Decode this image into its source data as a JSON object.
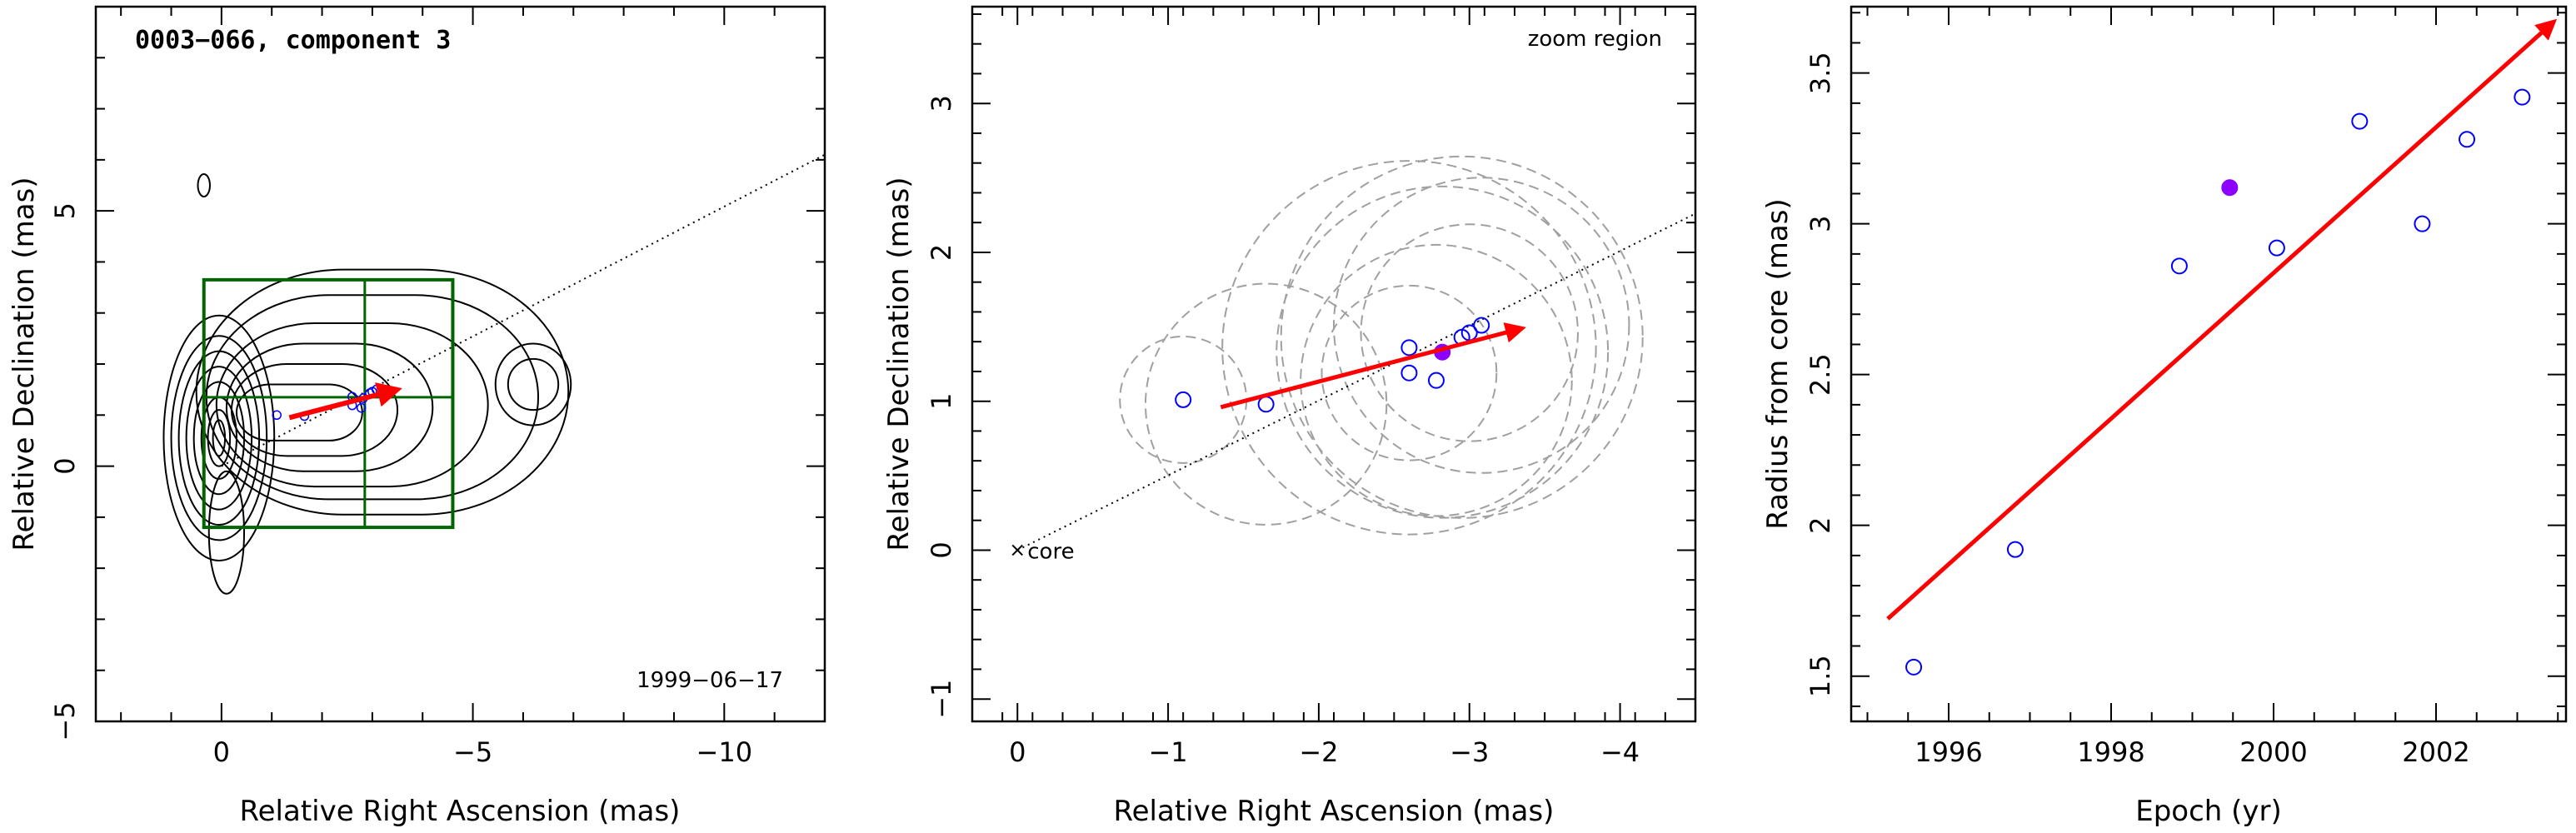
{
  "chart_data": [
    {
      "type": "contour",
      "title": "0003−066, component 3",
      "annotation_date": "1999−06−17",
      "xlabel": "Relative Right Ascension (mas)",
      "ylabel": "Relative Declination (mas)",
      "xlim": [
        2.5,
        -12
      ],
      "ylim": [
        -5,
        9
      ],
      "xticks": [
        0,
        -5,
        -10
      ],
      "xtick_labels": [
        "0",
        "−5",
        "−10"
      ],
      "yticks": [
        -5,
        0,
        5
      ],
      "ytick_labels": [
        "−5",
        "0",
        "5"
      ],
      "zoom_box": {
        "x0": 0.35,
        "x1": -4.6,
        "y0": -1.2,
        "y1": 3.65,
        "x_mid": -2.85,
        "y_mid": 1.35
      },
      "dotted_line": {
        "x0": 0,
        "y0": 0,
        "x1": -12,
        "y1": 6.1
      },
      "arrow": {
        "x0": -1.35,
        "y0": 0.95,
        "x1": -3.5,
        "y1": 1.5
      },
      "points": [
        {
          "x": -1.1,
          "y": 1.0
        },
        {
          "x": -1.65,
          "y": 0.98
        },
        {
          "x": -2.6,
          "y": 1.36
        },
        {
          "x": -2.6,
          "y": 1.19
        },
        {
          "x": -2.78,
          "y": 1.14
        },
        {
          "x": -2.82,
          "y": 1.33
        },
        {
          "x": -2.95,
          "y": 1.43
        },
        {
          "x": -3.0,
          "y": 1.46
        },
        {
          "x": -3.08,
          "y": 1.5
        }
      ]
    },
    {
      "type": "scatter",
      "annotation_zoom": "zoom region",
      "annotation_core": "core",
      "xlabel": "Relative Right Ascension (mas)",
      "ylabel": "Relative Declination (mas)",
      "xlim": [
        0.3,
        -4.5
      ],
      "ylim": [
        -1.15,
        3.65
      ],
      "xticks": [
        0,
        -1,
        -2,
        -3,
        -4
      ],
      "xtick_labels": [
        "0",
        "−1",
        "−2",
        "−3",
        "−4"
      ],
      "yticks": [
        -1,
        0,
        1,
        2,
        3
      ],
      "ytick_labels": [
        "−1",
        "0",
        "1",
        "2",
        "3"
      ],
      "dotted_line": {
        "x0": 0,
        "y0": 0,
        "x1": -4.5,
        "y1": 2.26
      },
      "arrow": {
        "x0": -1.35,
        "y0": 0.96,
        "x1": -3.35,
        "y1": 1.49
      },
      "points": [
        {
          "x": -1.1,
          "y": 1.01,
          "filled": false
        },
        {
          "x": -1.65,
          "y": 0.98,
          "filled": false
        },
        {
          "x": -2.6,
          "y": 1.36,
          "filled": false
        },
        {
          "x": -2.6,
          "y": 1.19,
          "filled": false
        },
        {
          "x": -2.78,
          "y": 1.14,
          "filled": false
        },
        {
          "x": -2.82,
          "y": 1.33,
          "filled": true
        },
        {
          "x": -2.95,
          "y": 1.43,
          "filled": false
        },
        {
          "x": -3.0,
          "y": 1.46,
          "filled": false
        },
        {
          "x": -3.08,
          "y": 1.51,
          "filled": false
        }
      ],
      "error_circles": [
        {
          "x": -1.1,
          "y": 1.01,
          "r": 0.42
        },
        {
          "x": -1.65,
          "y": 0.98,
          "r": 0.8
        },
        {
          "x": -2.6,
          "y": 1.36,
          "r": 1.24
        },
        {
          "x": -2.6,
          "y": 1.19,
          "r": 0.58
        },
        {
          "x": -2.78,
          "y": 1.14,
          "r": 0.9
        },
        {
          "x": -2.82,
          "y": 1.33,
          "r": 1.1
        },
        {
          "x": -2.95,
          "y": 1.43,
          "r": 1.2
        },
        {
          "x": -3.0,
          "y": 1.46,
          "r": 0.72
        },
        {
          "x": -3.08,
          "y": 1.51,
          "r": 0.98
        }
      ]
    },
    {
      "type": "scatter",
      "xlabel": "Epoch (yr)",
      "ylabel": "Radius from core (mas)",
      "xlim": [
        1994.8,
        2003.6
      ],
      "ylim": [
        1.35,
        3.72
      ],
      "xticks": [
        1996,
        1998,
        2000,
        2002
      ],
      "xtick_labels": [
        "1996",
        "1998",
        "2000",
        "2002"
      ],
      "yticks": [
        1.5,
        2,
        2.5,
        3,
        3.5
      ],
      "ytick_labels": [
        "1.5",
        "2",
        "2.5",
        "3",
        "3.5"
      ],
      "arrow": {
        "x0": 1995.25,
        "y0": 1.69,
        "x1": 2003.45,
        "y1": 3.67
      },
      "points": [
        {
          "x": 1995.57,
          "y": 1.53,
          "filled": false
        },
        {
          "x": 1996.82,
          "y": 1.92,
          "filled": false
        },
        {
          "x": 1998.84,
          "y": 2.86,
          "filled": false
        },
        {
          "x": 1999.46,
          "y": 3.12,
          "filled": true
        },
        {
          "x": 2000.04,
          "y": 2.92,
          "filled": false
        },
        {
          "x": 2001.06,
          "y": 3.34,
          "filled": false
        },
        {
          "x": 2001.83,
          "y": 3.0,
          "filled": false
        },
        {
          "x": 2002.38,
          "y": 3.28,
          "filled": false
        },
        {
          "x": 2003.06,
          "y": 3.42,
          "filled": false
        }
      ]
    }
  ],
  "colors": {
    "arrow": "#ff0000",
    "open_point": "#0000ff",
    "filled_point": "#8b00ff",
    "contour": "#000000",
    "zoom_box": "#006400",
    "error_circle": "#a0a0a0"
  }
}
